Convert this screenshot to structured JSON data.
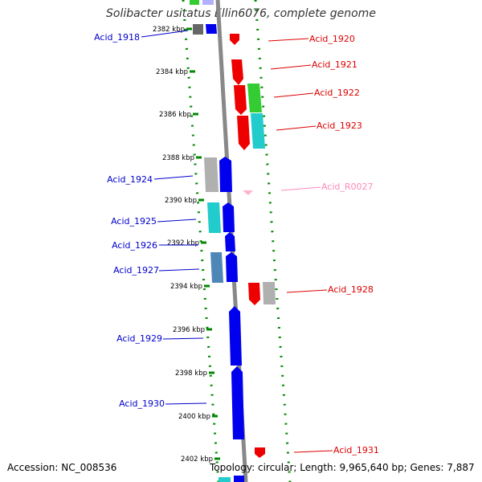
{
  "title": "Solibacter usitatus Ellin6076, complete genome",
  "accession": "Accession: NC_008536",
  "summary": "Topology: circular; Length: 9,965,640 bp; Genes: 7,887",
  "kbp_labels": [
    "2382 kbp",
    "2384 kbp",
    "2386 kbp",
    "2388 kbp",
    "2390 kbp",
    "2392 kbp",
    "2394 kbp",
    "2396 kbp",
    "2398 kbp",
    "2400 kbp",
    "2402 kbp"
  ],
  "genes_left": [
    "Acid_1918",
    "Acid_1924",
    "Acid_1925",
    "Acid_1926",
    "Acid_1927",
    "Acid_1929",
    "Acid_1930"
  ],
  "genes_right": [
    "Acid_1920",
    "Acid_1921",
    "Acid_1922",
    "Acid_1923",
    "Acid_R0027",
    "Acid_1928",
    "Acid_1931"
  ],
  "colors": {
    "forward_gene": "#0000ee",
    "reverse_gene": "#ee0000",
    "rna_gene": "#ffb0d0",
    "cog_green": "#33cc33",
    "cog_cyan": "#22cccc",
    "cog_grey": "#b0b0b0",
    "cog_steel": "#4f86b8",
    "backbone": "#888888",
    "ticks": "#008800",
    "left_label": "#0000cc",
    "right_label": "#dd0000",
    "rna_label": "#ff88bb"
  }
}
